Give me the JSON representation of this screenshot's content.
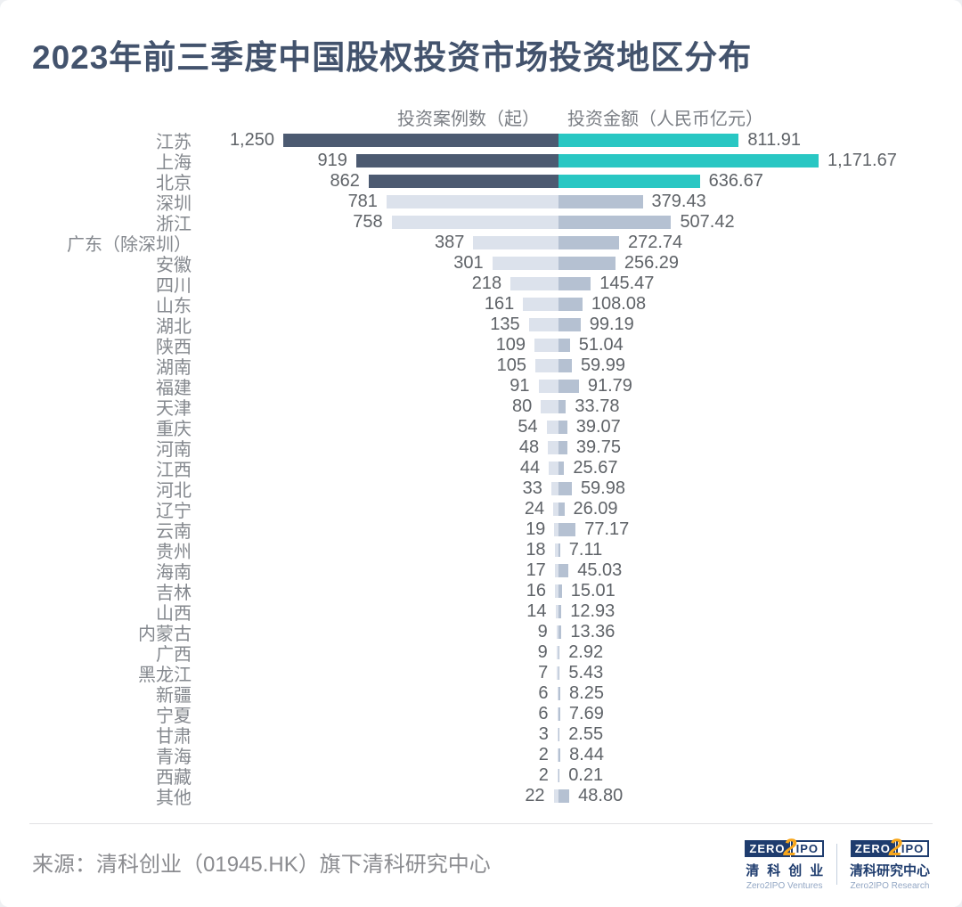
{
  "page": {
    "title": "2023年前三季度中国股权投资市场投资地区分布",
    "source": "来源：清科创业（01945.HK）旗下清科研究中心"
  },
  "columns": {
    "left_header": "投资案例数（起）",
    "right_header": "投资金额（人民币亿元）"
  },
  "colors": {
    "title": "#43536d",
    "bar_dark": "#4c5a71",
    "bar_teal": "#29c7c3",
    "bar_light": "#dce2ec",
    "bar_gray": "#b5c1d2",
    "logo_navy": "#1e3c6e",
    "logo_orange": "#f7a61b"
  },
  "chart_data": {
    "type": "bar",
    "variant": "butterfly",
    "title": "2023年前三季度中国股权投资市场投资地区分布",
    "categories": [
      "江苏",
      "上海",
      "北京",
      "深圳",
      "浙江",
      "广东（除深圳）",
      "安徽",
      "四川",
      "山东",
      "湖北",
      "陕西",
      "湖南",
      "福建",
      "天津",
      "重庆",
      "河南",
      "江西",
      "河北",
      "辽宁",
      "云南",
      "贵州",
      "海南",
      "吉林",
      "山西",
      "内蒙古",
      "广西",
      "黑龙江",
      "新疆",
      "宁夏",
      "甘肃",
      "青海",
      "西藏",
      "其他"
    ],
    "series": [
      {
        "name": "投资案例数（起）",
        "values": [
          1250,
          919,
          862,
          781,
          758,
          387,
          301,
          218,
          161,
          135,
          109,
          105,
          91,
          80,
          54,
          48,
          44,
          33,
          24,
          19,
          18,
          17,
          16,
          14,
          9,
          9,
          7,
          6,
          6,
          3,
          2,
          2,
          22
        ]
      },
      {
        "name": "投资金额（人民币亿元）",
        "values": [
          811.91,
          1171.67,
          636.67,
          379.43,
          507.42,
          272.74,
          256.29,
          145.47,
          108.08,
          99.19,
          51.04,
          59.99,
          91.79,
          33.78,
          39.07,
          39.75,
          25.67,
          59.98,
          26.09,
          77.17,
          7.11,
          45.03,
          15.01,
          12.93,
          13.36,
          2.92,
          5.43,
          8.25,
          7.69,
          2.55,
          8.44,
          0.21,
          48.8
        ]
      }
    ],
    "highlight_top_n": 3,
    "legend_position": "top",
    "grid": false
  },
  "rows": [
    {
      "region": "江苏",
      "cases": 1250,
      "cases_label": "1,250",
      "amount": 811.91,
      "amount_label": "811.91"
    },
    {
      "region": "上海",
      "cases": 919,
      "cases_label": "919",
      "amount": 1171.67,
      "amount_label": "1,171.67"
    },
    {
      "region": "北京",
      "cases": 862,
      "cases_label": "862",
      "amount": 636.67,
      "amount_label": "636.67"
    },
    {
      "region": "深圳",
      "cases": 781,
      "cases_label": "781",
      "amount": 379.43,
      "amount_label": "379.43"
    },
    {
      "region": "浙江",
      "cases": 758,
      "cases_label": "758",
      "amount": 507.42,
      "amount_label": "507.42"
    },
    {
      "region": "广东（除深圳）",
      "cases": 387,
      "cases_label": "387",
      "amount": 272.74,
      "amount_label": "272.74"
    },
    {
      "region": "安徽",
      "cases": 301,
      "cases_label": "301",
      "amount": 256.29,
      "amount_label": "256.29"
    },
    {
      "region": "四川",
      "cases": 218,
      "cases_label": "218",
      "amount": 145.47,
      "amount_label": "145.47"
    },
    {
      "region": "山东",
      "cases": 161,
      "cases_label": "161",
      "amount": 108.08,
      "amount_label": "108.08"
    },
    {
      "region": "湖北",
      "cases": 135,
      "cases_label": "135",
      "amount": 99.19,
      "amount_label": "99.19"
    },
    {
      "region": "陕西",
      "cases": 109,
      "cases_label": "109",
      "amount": 51.04,
      "amount_label": "51.04"
    },
    {
      "region": "湖南",
      "cases": 105,
      "cases_label": "105",
      "amount": 59.99,
      "amount_label": "59.99"
    },
    {
      "region": "福建",
      "cases": 91,
      "cases_label": "91",
      "amount": 91.79,
      "amount_label": "91.79"
    },
    {
      "region": "天津",
      "cases": 80,
      "cases_label": "80",
      "amount": 33.78,
      "amount_label": "33.78"
    },
    {
      "region": "重庆",
      "cases": 54,
      "cases_label": "54",
      "amount": 39.07,
      "amount_label": "39.07"
    },
    {
      "region": "河南",
      "cases": 48,
      "cases_label": "48",
      "amount": 39.75,
      "amount_label": "39.75"
    },
    {
      "region": "江西",
      "cases": 44,
      "cases_label": "44",
      "amount": 25.67,
      "amount_label": "25.67"
    },
    {
      "region": "河北",
      "cases": 33,
      "cases_label": "33",
      "amount": 59.98,
      "amount_label": "59.98"
    },
    {
      "region": "辽宁",
      "cases": 24,
      "cases_label": "24",
      "amount": 26.09,
      "amount_label": "26.09"
    },
    {
      "region": "云南",
      "cases": 19,
      "cases_label": "19",
      "amount": 77.17,
      "amount_label": "77.17"
    },
    {
      "region": "贵州",
      "cases": 18,
      "cases_label": "18",
      "amount": 7.11,
      "amount_label": "7.11"
    },
    {
      "region": "海南",
      "cases": 17,
      "cases_label": "17",
      "amount": 45.03,
      "amount_label": "45.03"
    },
    {
      "region": "吉林",
      "cases": 16,
      "cases_label": "16",
      "amount": 15.01,
      "amount_label": "15.01"
    },
    {
      "region": "山西",
      "cases": 14,
      "cases_label": "14",
      "amount": 12.93,
      "amount_label": "12.93"
    },
    {
      "region": "内蒙古",
      "cases": 9,
      "cases_label": "9",
      "amount": 13.36,
      "amount_label": "13.36"
    },
    {
      "region": "广西",
      "cases": 9,
      "cases_label": "9",
      "amount": 2.92,
      "amount_label": "2.92"
    },
    {
      "region": "黑龙江",
      "cases": 7,
      "cases_label": "7",
      "amount": 5.43,
      "amount_label": "5.43"
    },
    {
      "region": "新疆",
      "cases": 6,
      "cases_label": "6",
      "amount": 8.25,
      "amount_label": "8.25"
    },
    {
      "region": "宁夏",
      "cases": 6,
      "cases_label": "6",
      "amount": 7.69,
      "amount_label": "7.69"
    },
    {
      "region": "甘肃",
      "cases": 3,
      "cases_label": "3",
      "amount": 2.55,
      "amount_label": "2.55"
    },
    {
      "region": "青海",
      "cases": 2,
      "cases_label": "2",
      "amount": 8.44,
      "amount_label": "8.44"
    },
    {
      "region": "西藏",
      "cases": 2,
      "cases_label": "2",
      "amount": 0.21,
      "amount_label": "0.21"
    },
    {
      "region": "其他",
      "cases": 22,
      "cases_label": "22",
      "amount": 48.8,
      "amount_label": "48.80"
    }
  ],
  "logos": [
    {
      "zero": "ZERO",
      "two": "2",
      "ipo": "IPO",
      "cn": "清科创业",
      "en": "Zero2IPO Ventures"
    },
    {
      "zero": "ZERO",
      "two": "2",
      "ipo": "IPO",
      "cn": "清科研究中心",
      "en": "Zero2IPO Research"
    }
  ]
}
